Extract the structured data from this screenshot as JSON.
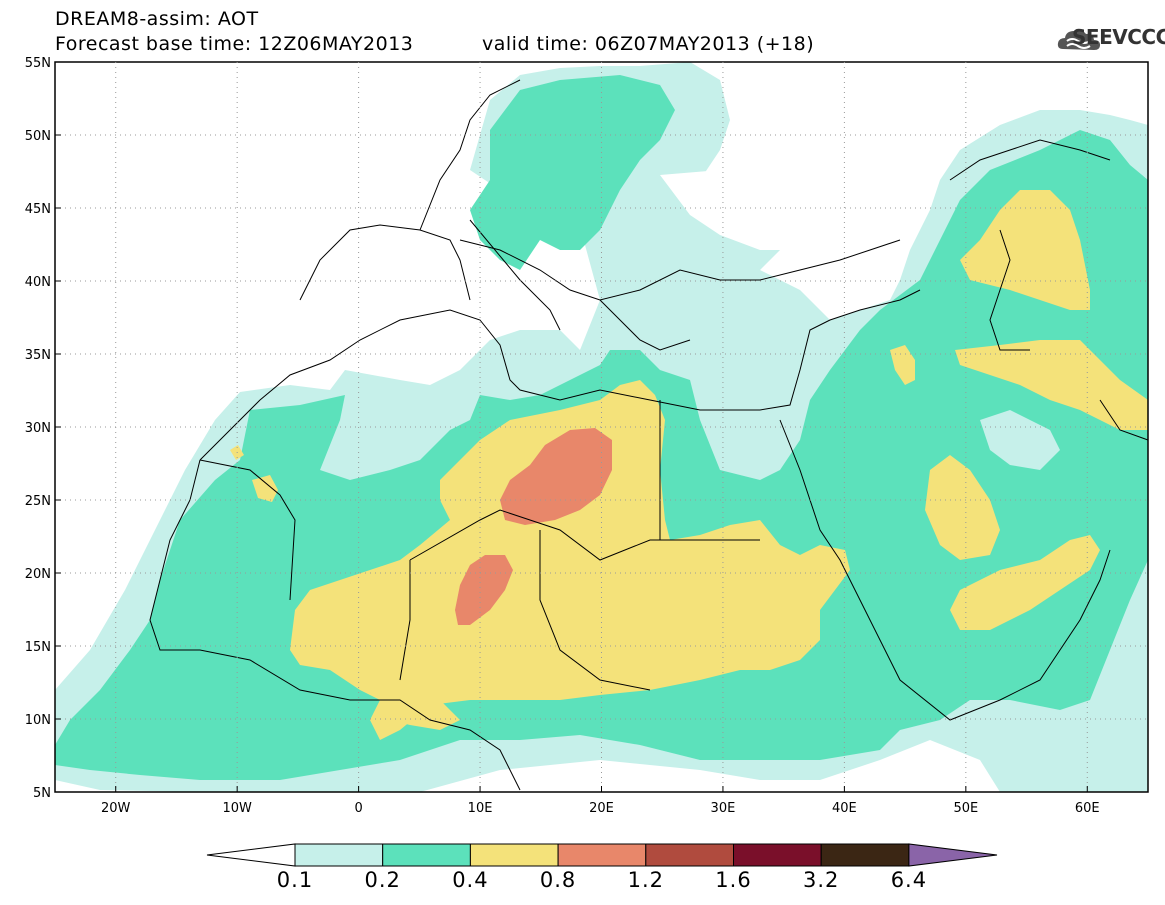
{
  "header": {
    "model_line": "DREAM8-assim: AOT",
    "base_time_line": "Forecast base time: 12Z06MAY2013",
    "valid_time_line": "valid time: 06Z07MAY2013 (+18)",
    "logo_text": "SEEVCCC"
  },
  "map": {
    "lat_labels": [
      "55N",
      "50N",
      "45N",
      "40N",
      "35N",
      "30N",
      "25N",
      "20N",
      "15N",
      "10N",
      "5N"
    ],
    "lon_labels": [
      "20W",
      "10W",
      "0",
      "10E",
      "20E",
      "30E",
      "40E",
      "50E",
      "60E"
    ],
    "lon_range": [
      -25,
      65
    ],
    "lat_range": [
      5,
      55
    ]
  },
  "colorbar": {
    "labels": [
      "0.1",
      "0.2",
      "0.4",
      "0.8",
      "1.2",
      "1.6",
      "3.2",
      "6.4"
    ],
    "colors": [
      "#c6f0ea",
      "#5ce1bb",
      "#f4e27a",
      "#e8876a",
      "#b04b3e",
      "#7a0f2a",
      "#3b2614",
      "#8a64a8"
    ]
  },
  "legend_colors": {
    "low": "#c6f0ea",
    "mid": "#5ce1bb",
    "high": "#f4e27a",
    "very_high": "#e8876a"
  }
}
